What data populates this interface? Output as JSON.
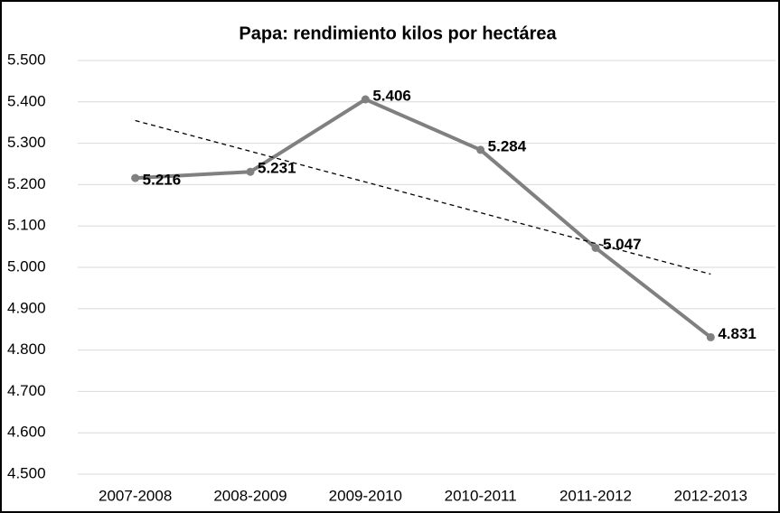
{
  "chart_data": {
    "type": "line",
    "title": "Papa: rendimiento kilos por hectárea",
    "categories": [
      "2007-2008",
      "2008-2009",
      "2009-2010",
      "2010-2011",
      "2011-2012",
      "2012-2013"
    ],
    "series": [
      {
        "color": "#808080",
        "values": [
          5216,
          5231,
          5406,
          5284,
          5047,
          4831
        ],
        "value_labels": [
          "5.216",
          "5.231",
          "5.406",
          "5.284",
          "5.047",
          "4.831"
        ]
      }
    ],
    "trendline": "linear",
    "ylim": [
      4500,
      5500
    ],
    "yticks": [
      {
        "value": 4500,
        "label": "4.500"
      },
      {
        "value": 4600,
        "label": "4.600"
      },
      {
        "value": 4700,
        "label": "4.700"
      },
      {
        "value": 4800,
        "label": "4.800"
      },
      {
        "value": 4900,
        "label": "4.900"
      },
      {
        "value": 5000,
        "label": "5.000"
      },
      {
        "value": 5100,
        "label": "5.100"
      },
      {
        "value": 5200,
        "label": "5.200"
      },
      {
        "value": 5300,
        "label": "5.300"
      },
      {
        "value": 5400,
        "label": "5.400"
      },
      {
        "value": 5500,
        "label": "5.500"
      }
    ],
    "grid": true
  }
}
